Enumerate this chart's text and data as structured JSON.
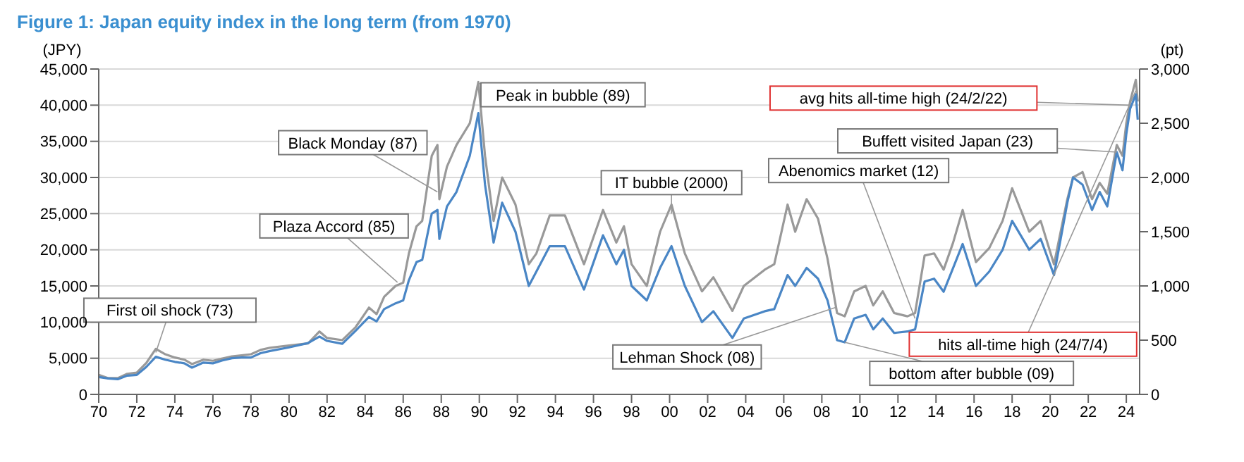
{
  "chart_data": {
    "type": "line",
    "title": "Figure 1: Japan equity index in the long term (from 1970)",
    "ylabel": "(JPY)",
    "y2label": "(pt)",
    "x": [
      1970.0,
      1970.5,
      1971.0,
      1971.5,
      1972.0,
      1972.5,
      1973.0,
      1973.5,
      1974.0,
      1974.5,
      1974.9,
      1975.5,
      1976.0,
      1976.5,
      1977.0,
      1977.5,
      1978.0,
      1978.5,
      1979.0,
      1980.0,
      1981.0,
      1981.6,
      1982.0,
      1982.8,
      1983.5,
      1984.2,
      1984.6,
      1985.0,
      1985.6,
      1986.0,
      1986.3,
      1986.7,
      1987.0,
      1987.5,
      1987.8,
      1987.9,
      1988.3,
      1988.8,
      1989.5,
      1989.95,
      1990.3,
      1990.75,
      1991.2,
      1991.9,
      1992.6,
      1993.0,
      1993.7,
      1994.5,
      1995.5,
      1996.5,
      1997.2,
      1997.6,
      1998.0,
      1998.8,
      1999.5,
      2000.1,
      2000.8,
      2001.7,
      2002.3,
      2003.3,
      2003.9,
      2005.0,
      2005.5,
      2006.2,
      2006.6,
      2007.2,
      2007.8,
      2008.3,
      2008.8,
      2009.2,
      2009.7,
      2010.3,
      2010.7,
      2011.2,
      2011.8,
      2012.5,
      2012.9,
      2013.4,
      2013.9,
      2014.4,
      2014.9,
      2015.4,
      2016.1,
      2016.8,
      2017.5,
      2018.0,
      2018.9,
      2019.5,
      2020.2,
      2020.9,
      2021.2,
      2021.7,
      2022.2,
      2022.6,
      2023.0,
      2023.5,
      2023.8,
      2024.0,
      2024.2,
      2024.5,
      2024.6
    ],
    "series": [
      {
        "color": "#4a86c5",
        "values": [
          2400,
          2200,
          2100,
          2600,
          2700,
          3800,
          5200,
          4800,
          4500,
          4300,
          3700,
          4400,
          4300,
          4700,
          5000,
          5100,
          5100,
          5700,
          6000,
          6500,
          7100,
          8000,
          7400,
          7000,
          8800,
          10700,
          10100,
          11800,
          12600,
          13000,
          15800,
          18300,
          18600,
          25000,
          25500,
          21500,
          26000,
          28000,
          33000,
          38900,
          29000,
          21000,
          26500,
          22500,
          15000,
          17000,
          20500,
          20500,
          14500,
          22000,
          18000,
          20000,
          15000,
          13000,
          17500,
          20500,
          15000,
          10000,
          11500,
          7800,
          10500,
          11500,
          11800,
          16500,
          15000,
          17500,
          16000,
          13000,
          7500,
          7200,
          10500,
          11000,
          9000,
          10500,
          8500,
          8700,
          9000,
          15600,
          16000,
          14200,
          17500,
          20800,
          15000,
          17000,
          20000,
          24000,
          20000,
          21500,
          16500,
          26500,
          30000,
          29000,
          25500,
          28000,
          26000,
          33500,
          31000,
          36000,
          39500,
          41500,
          38000
        ]
      },
      {
        "color": "#999999",
        "axis": "y2",
        "values": [
          180,
          150,
          150,
          190,
          200,
          290,
          420,
          370,
          340,
          320,
          280,
          320,
          310,
          330,
          350,
          360,
          370,
          410,
          430,
          450,
          470,
          580,
          520,
          500,
          620,
          800,
          740,
          900,
          1000,
          1030,
          1300,
          1550,
          1600,
          2200,
          2300,
          1800,
          2100,
          2300,
          2500,
          2880,
          2200,
          1600,
          2000,
          1750,
          1200,
          1300,
          1650,
          1650,
          1200,
          1700,
          1400,
          1550,
          1200,
          1000,
          1500,
          1750,
          1300,
          950,
          1080,
          770,
          1000,
          1150,
          1200,
          1750,
          1500,
          1800,
          1620,
          1250,
          750,
          720,
          950,
          1000,
          820,
          950,
          750,
          720,
          750,
          1280,
          1300,
          1150,
          1400,
          1700,
          1220,
          1350,
          1600,
          1900,
          1500,
          1600,
          1200,
          1800,
          2000,
          2050,
          1800,
          1950,
          1850,
          2300,
          2200,
          2500,
          2700,
          2900,
          2700
        ]
      }
    ],
    "xlim": [
      1970,
      2024.7
    ],
    "xticks": [
      {
        "value": 1970,
        "label": "70"
      },
      {
        "value": 1972,
        "label": "72"
      },
      {
        "value": 1974,
        "label": "74"
      },
      {
        "value": 1976,
        "label": "76"
      },
      {
        "value": 1978,
        "label": "78"
      },
      {
        "value": 1980,
        "label": "80"
      },
      {
        "value": 1982,
        "label": "82"
      },
      {
        "value": 1984,
        "label": "84"
      },
      {
        "value": 1986,
        "label": "86"
      },
      {
        "value": 1988,
        "label": "88"
      },
      {
        "value": 1990,
        "label": "90"
      },
      {
        "value": 1992,
        "label": "92"
      },
      {
        "value": 1994,
        "label": "94"
      },
      {
        "value": 1996,
        "label": "96"
      },
      {
        "value": 1998,
        "label": "98"
      },
      {
        "value": 2000,
        "label": "00"
      },
      {
        "value": 2002,
        "label": "02"
      },
      {
        "value": 2004,
        "label": "04"
      },
      {
        "value": 2006,
        "label": "06"
      },
      {
        "value": 2008,
        "label": "08"
      },
      {
        "value": 2010,
        "label": "10"
      },
      {
        "value": 2012,
        "label": "12"
      },
      {
        "value": 2014,
        "label": "14"
      },
      {
        "value": 2016,
        "label": "16"
      },
      {
        "value": 2018,
        "label": "18"
      },
      {
        "value": 2020,
        "label": "20"
      },
      {
        "value": 2022,
        "label": "22"
      },
      {
        "value": 2024,
        "label": "24"
      }
    ],
    "ylim": [
      0,
      45000
    ],
    "yticks": [
      0,
      {
        "value": 5000,
        "label": "5,000"
      },
      {
        "value": 10000,
        "label": "10,000"
      },
      {
        "value": 15000,
        "label": "15,000"
      },
      {
        "value": 20000,
        "label": "20,000"
      },
      {
        "value": 25000,
        "label": "25,000"
      },
      {
        "value": 30000,
        "label": "30,000"
      },
      {
        "value": 35000,
        "label": "35,000"
      },
      {
        "value": 40000,
        "label": "40,000"
      },
      {
        "value": 45000,
        "label": "45,000"
      }
    ],
    "y2lim": [
      0,
      3000
    ],
    "y2ticks": [
      0,
      500,
      {
        "value": 1000,
        "label": "1,000"
      },
      {
        "value": 1500,
        "label": "1,500"
      },
      {
        "value": 2000,
        "label": "2,000"
      },
      {
        "value": 2500,
        "label": "2,500"
      },
      {
        "value": 3000,
        "label": "3,000"
      }
    ],
    "grid": "y",
    "marker": "none",
    "line_style": "solid",
    "annotations": [
      {
        "text": "First oil shock (73)",
        "x": 1973.0,
        "y": 5800
      },
      {
        "text": "Plaza Accord (85)",
        "x": 1985.7,
        "y": 15500
      },
      {
        "text": "Black Monday (87)",
        "x": 1987.8,
        "y": 28000
      },
      {
        "text": "Peak in bubble (89)",
        "x": 1989.95,
        "y": 43000
      },
      {
        "text": "IT bubble (2000)",
        "x": 2000.1,
        "y": 25000
      },
      {
        "text": "Lehman Shock (08)",
        "x": 2008.7,
        "y": 12000
      },
      {
        "text": "Abenomics market (12)",
        "x": 2012.9,
        "y": 10500
      },
      {
        "text": "bottom after bubble (09)",
        "x": 2009.2,
        "y": 7200
      },
      {
        "text": "Buffett visited Japan (23)",
        "x": 2023.5,
        "y": 33500
      },
      {
        "text": "avg hits all-time high (24/2/22)",
        "x": 2024.15,
        "y": 40000
      },
      {
        "text": "hits all-time high (24/7/4)",
        "x": 2024.5,
        "y": 42000
      }
    ]
  }
}
